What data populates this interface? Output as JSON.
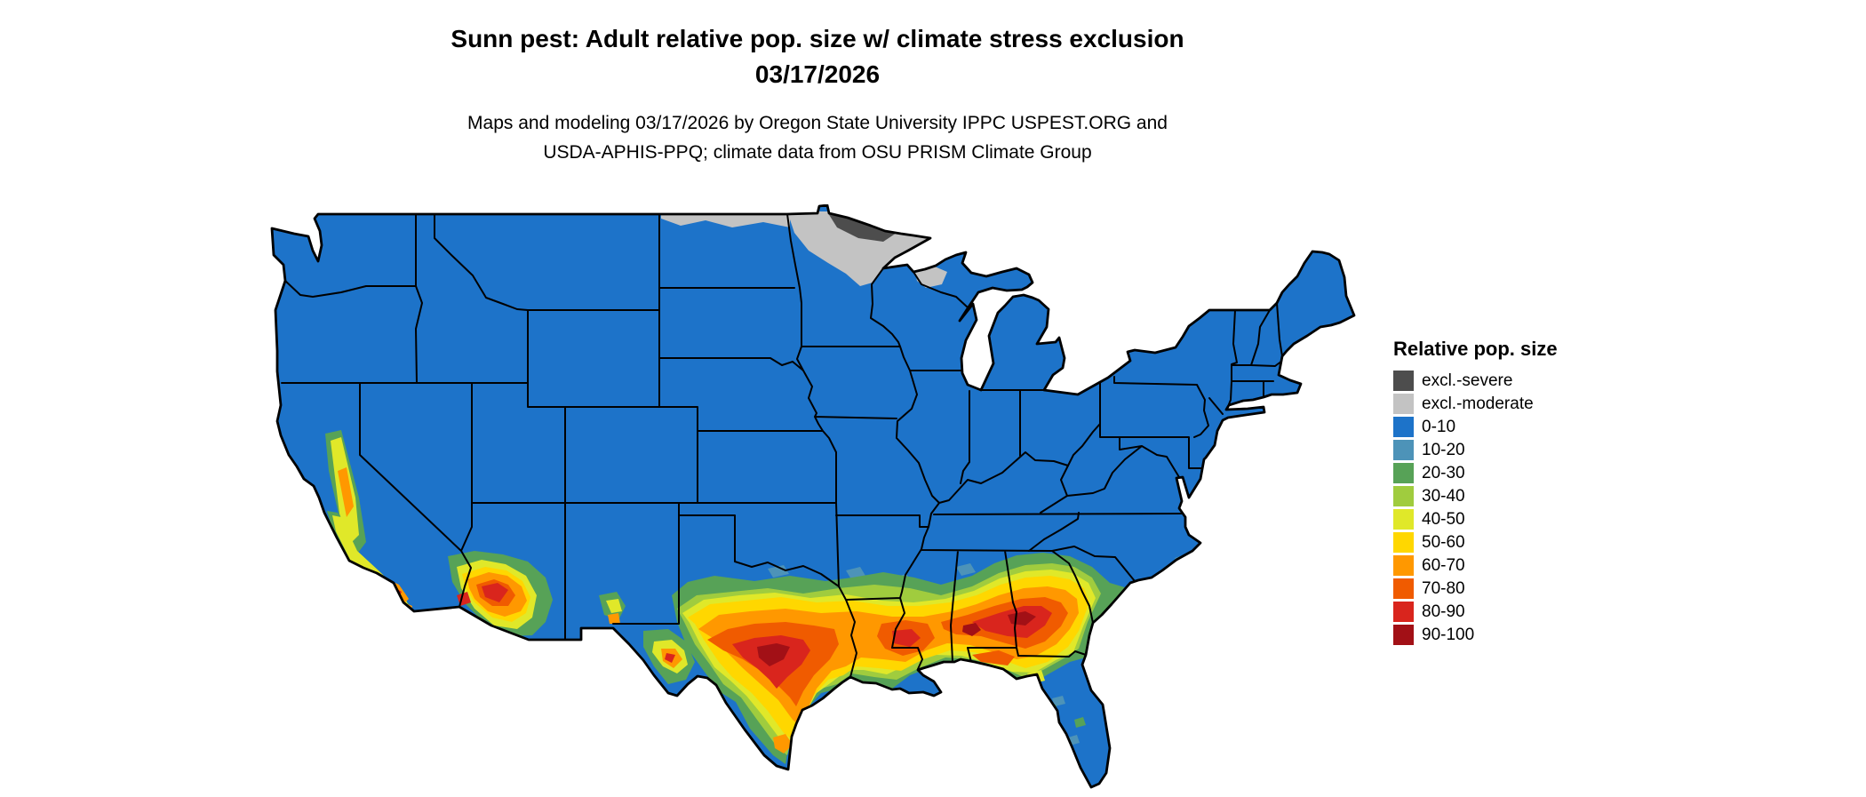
{
  "header": {
    "title": "Sunn pest: Adult relative pop. size w/ climate stress exclusion",
    "date": "03/17/2026",
    "subtitle_line1": "Maps and modeling 03/17/2026 by Oregon State University IPPC USPEST.ORG and",
    "subtitle_line2": "USDA-APHIS-PPQ; climate data from OSU PRISM Climate Group"
  },
  "legend": {
    "title": "Relative pop. size",
    "items": [
      {
        "label": "excl.-severe",
        "color": "#4d4d4d"
      },
      {
        "label": "excl.-moderate",
        "color": "#c3c3c3"
      },
      {
        "label": "0-10",
        "color": "#1d73c9"
      },
      {
        "label": "10-20",
        "color": "#4d93b8"
      },
      {
        "label": "20-30",
        "color": "#57a257"
      },
      {
        "label": "30-40",
        "color": "#a0cc3e"
      },
      {
        "label": "40-50",
        "color": "#e0e829"
      },
      {
        "label": "50-60",
        "color": "#ffd700"
      },
      {
        "label": "60-70",
        "color": "#ff9800"
      },
      {
        "label": "70-80",
        "color": "#f05b00"
      },
      {
        "label": "80-90",
        "color": "#d9251d"
      },
      {
        "label": "90-100",
        "color": "#a21016"
      }
    ]
  },
  "map": {
    "outline_color": "#000000"
  }
}
